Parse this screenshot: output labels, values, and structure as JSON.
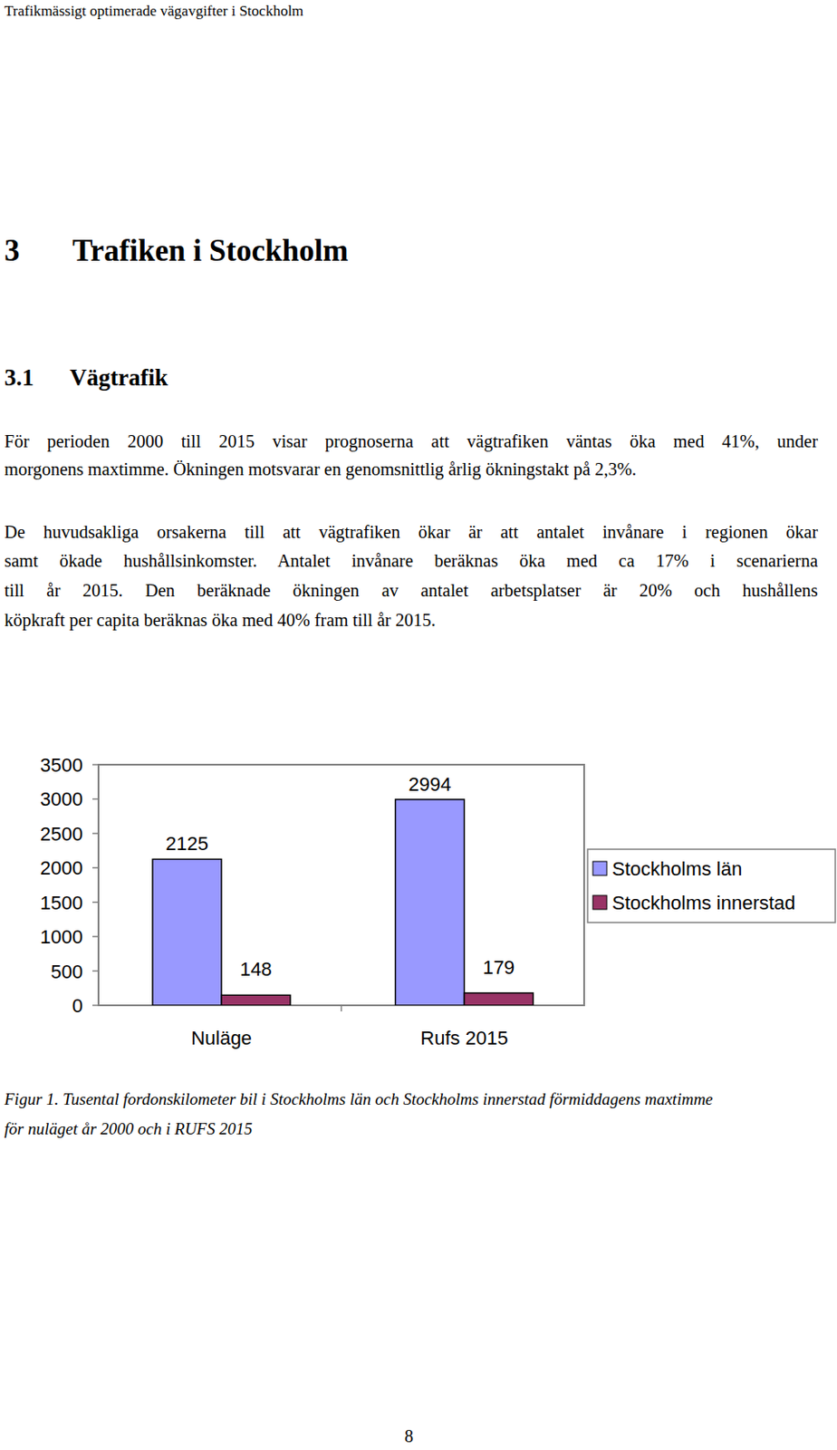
{
  "header": "Trafikmässigt optimerade vägavgifter i Stockholm",
  "heading": {
    "number": "3",
    "title": "Trafiken i Stockholm"
  },
  "section": {
    "number": "3.1",
    "title": "Vägtrafik"
  },
  "paragraphs": [
    [
      "För perioden 2000 till 2015 visar prognoserna att vägtrafiken väntas öka med 41%, under",
      "morgonens maxtimme. Ökningen motsvarar en genomsnittlig årlig ökningstakt på 2,3%."
    ],
    [
      "De huvudsakliga orsakerna till att vägtrafiken ökar är att antalet invånare i regionen ökar",
      "samt ökade hushållsinkomster. Antalet invånare beräknas öka med ca 17% i scenarierna",
      "till år 2015. Den beräknade ökningen av antalet arbetsplatser är 20% och hushållens",
      "köpkraft per capita beräknas öka med 40% fram till år 2015."
    ]
  ],
  "chart_data": {
    "type": "bar",
    "categories": [
      "Nuläge",
      "Rufs 2015"
    ],
    "series": [
      {
        "name": "Stockholms län",
        "color": "#9999ff",
        "values": [
          2125,
          2994
        ]
      },
      {
        "name": "Stockholms innerstad",
        "color": "#993366",
        "values": [
          148,
          179
        ]
      }
    ],
    "ylim": [
      0,
      3500
    ],
    "yticks": [
      0,
      500,
      1000,
      1500,
      2000,
      2500,
      3000,
      3500
    ],
    "grid": false,
    "legend": "right",
    "data_labels": true
  },
  "caption": [
    "Figur 1. Tusental fordonskilometer bil i Stockholms län och Stockholms innerstad förmiddagens maxtimme",
    "för nuläget år 2000 och i RUFS 2015"
  ],
  "page_number": "8"
}
